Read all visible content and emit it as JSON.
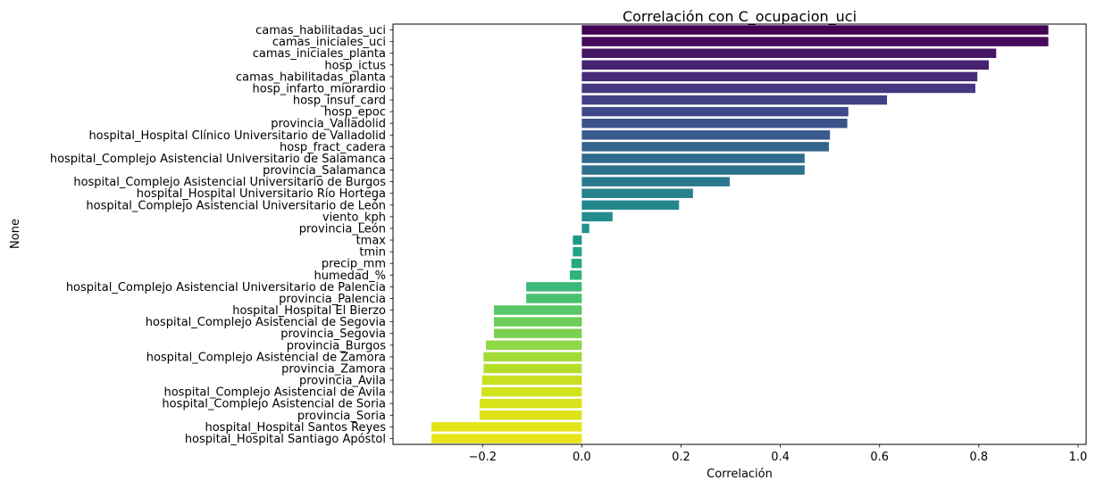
{
  "chart_data": {
    "type": "bar",
    "orientation": "horizontal",
    "title": "Correlación con C_ocupacion_uci",
    "xlabel": "Correlación",
    "ylabel": "None",
    "xlim": [
      -0.3804,
      1.0162
    ],
    "xticks": [
      -0.2,
      0.0,
      0.2,
      0.4,
      0.6,
      0.8,
      1.0
    ],
    "xtick_labels": [
      "−0.2",
      "0.0",
      "0.2",
      "0.4",
      "0.6",
      "0.8",
      "1.0"
    ],
    "grid": false,
    "legend": "none",
    "colormap": "viridis",
    "categories": [
      "camas_habilitadas_uci",
      "camas_iniciales_uci",
      "camas_iniciales_planta",
      "hosp_ictus",
      "camas_habilitadas_planta",
      "hosp_infarto_miorardio",
      "hosp_insuf_card",
      "hosp_epoc",
      "provincia_Valladolid",
      "hospital_Hospital Clínico Universitario de Valladolid",
      "hosp_fract_cadera",
      "hospital_Complejo Asistencial Universitario de Salamanca",
      "provincia_Salamanca",
      "hospital_Complejo Asistencial Universitario de Burgos",
      "hospital_Hospital Universitario Río Hortega",
      "hospital_Complejo Asistencial Universitario de León",
      "viento_kph",
      "provincia_León",
      "tmax",
      "tmin",
      "precip_mm",
      "humedad_%",
      "hospital_Complejo Asistencial Universitario de Palencia",
      "provincia_Palencia",
      "hospital_Hospital El Bierzo",
      "hospital_Complejo Asistencial de Segovia",
      "provincia_Segovia",
      "provincia_Burgos",
      "hospital_Complejo Asistencial de Zamora",
      "provincia_Zamora",
      "provincia_Avila",
      "hospital_Complejo Asistencial de Avila",
      "hospital_Complejo Asistencial de Soria",
      "provincia_Soria",
      "hospital_Hospital Santos Reyes",
      "hospital_Hospital Santiago Apóstol"
    ],
    "values": [
      0.94,
      0.94,
      0.835,
      0.82,
      0.797,
      0.793,
      0.615,
      0.537,
      0.535,
      0.5,
      0.498,
      0.449,
      0.449,
      0.298,
      0.224,
      0.196,
      0.062,
      0.015,
      -0.018,
      -0.018,
      -0.021,
      -0.024,
      -0.112,
      -0.112,
      -0.177,
      -0.177,
      -0.177,
      -0.193,
      -0.198,
      -0.198,
      -0.201,
      -0.202,
      -0.206,
      -0.206,
      -0.303,
      -0.303
    ],
    "colors": [
      "#440154",
      "#450a5c",
      "#461564",
      "#472270",
      "#472c7a",
      "#453781",
      "#424086",
      "#3e4989",
      "#3b528b",
      "#375b8d",
      "#33638d",
      "#306a8e",
      "#2d718e",
      "#2a788e",
      "#27808e",
      "#25878e",
      "#228d8d",
      "#20938c",
      "#1f9a8a",
      "#20a386",
      "#24aa83",
      "#2eb37c",
      "#3aba76",
      "#48c16e",
      "#58c765",
      "#6ccd5a",
      "#7ad151",
      "#8fd744",
      "#a2da37",
      "#b5de2b",
      "#c8e020",
      "#d2e21b",
      "#d8e219",
      "#dde318",
      "#e2e418",
      "#e7e419"
    ]
  }
}
